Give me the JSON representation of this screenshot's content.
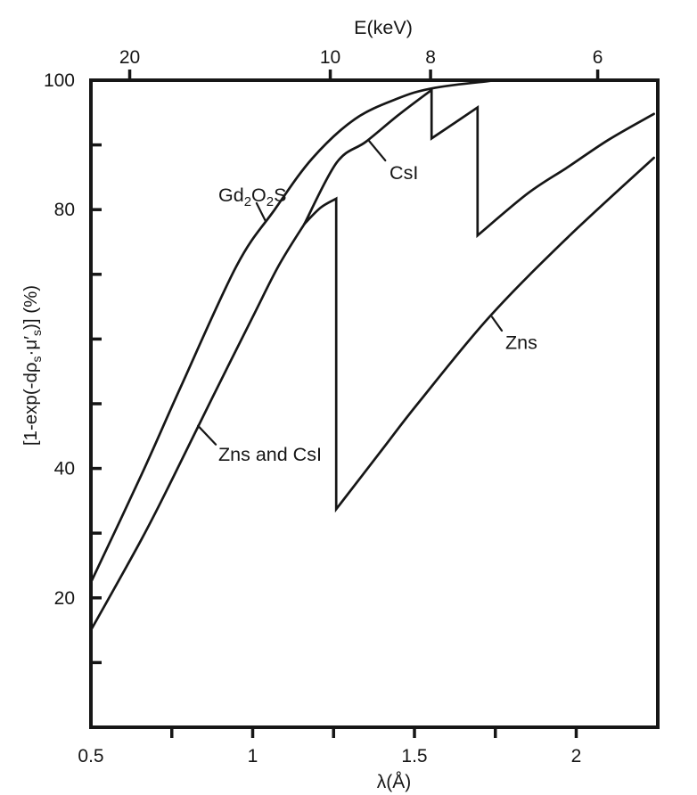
{
  "figure": {
    "background": "#ffffff",
    "ink": "#161616",
    "description": "X-ray absorption efficiency of phosphor screens versus wavelength"
  },
  "chart_data": {
    "type": "line",
    "grid": false,
    "legend": "inline-labels-with-leader-lines",
    "xlim": [
      0.5,
      2.24
    ],
    "ylim": [
      0,
      100
    ],
    "top_axis": {
      "label": "E(keV)",
      "ticks": [
        20,
        10,
        8,
        6
      ],
      "relation_to_x": "E[keV] = 12.398 / lambda[Angstrom]"
    },
    "x_axis": {
      "label": "λ(Å)",
      "min": 0.5,
      "max": 2.24,
      "tick_marks": [
        0.75,
        1.0,
        1.25,
        1.5,
        1.75,
        2.0
      ],
      "tick_labels": [
        {
          "value": 0.5,
          "text": "0.5"
        },
        {
          "value": 1.0,
          "text": "1"
        },
        {
          "value": 1.5,
          "text": "1.5"
        },
        {
          "value": 2.0,
          "text": "2"
        }
      ]
    },
    "y_axis": {
      "label_plain": "[1-exp(-dρs·μ′s)] (%)",
      "label_parts": [
        {
          "t": "[1-exp(-dρ"
        },
        {
          "t": "s",
          "sub": true
        },
        {
          "t": "·μ′"
        },
        {
          "t": "s",
          "sub": true
        },
        {
          "t": ")] (%)"
        }
      ],
      "min": 0,
      "max": 100,
      "tick_marks": [
        10,
        20,
        30,
        40,
        50,
        60,
        70,
        80,
        90
      ],
      "tick_labels": [
        {
          "value": 100,
          "text": "100"
        },
        {
          "value": 80,
          "text": "80"
        },
        {
          "value": 40,
          "text": "40"
        },
        {
          "value": 20,
          "text": "20"
        }
      ]
    },
    "series": [
      {
        "id": "gd2o2s",
        "name": "Gd2O2S",
        "points": [
          [
            0.5,
            22.4
          ],
          [
            0.657,
            39.1
          ],
          [
            0.775,
            52.3
          ],
          [
            0.95,
            71.3
          ],
          [
            1.068,
            80.0
          ],
          [
            1.184,
            87.9
          ],
          [
            1.316,
            94.0
          ],
          [
            1.45,
            97.2
          ],
          [
            1.55,
            98.7
          ],
          [
            1.7,
            99.7
          ],
          [
            1.81,
            100
          ],
          [
            2.24,
            100
          ]
        ]
      },
      {
        "id": "zns-csi-common",
        "name": "Zns and CsI (overlapping portion)",
        "points": [
          [
            0.5,
            15.0
          ],
          [
            0.657,
            29.1
          ],
          [
            0.753,
            38.5
          ],
          [
            0.876,
            51.0
          ],
          [
            1.0,
            63.4
          ],
          [
            1.08,
            71.3
          ],
          [
            1.16,
            77.8
          ]
        ]
      },
      {
        "id": "csi",
        "name": "CsI",
        "points": [
          [
            1.16,
            77.8
          ],
          [
            1.26,
            87.3
          ],
          [
            1.35,
            90.5
          ],
          [
            1.45,
            94.6
          ],
          [
            1.553,
            98.5
          ],
          [
            1.553,
            91.0
          ],
          [
            1.63,
            93.6
          ],
          [
            1.695,
            95.8
          ],
          [
            1.695,
            76.0
          ],
          [
            1.85,
            82.5
          ],
          [
            1.975,
            86.6
          ],
          [
            2.1,
            90.8
          ],
          [
            2.24,
            94.8
          ]
        ]
      },
      {
        "id": "zns",
        "name": "Zns",
        "points": [
          [
            1.16,
            77.8
          ],
          [
            1.21,
            80.3
          ],
          [
            1.258,
            81.7
          ],
          [
            1.258,
            33.7
          ],
          [
            1.4,
            42.9
          ],
          [
            1.51,
            50.0
          ],
          [
            1.733,
            63.5
          ],
          [
            1.98,
            76.0
          ],
          [
            2.24,
            88.0
          ]
        ]
      }
    ],
    "annotations": [
      {
        "id": "gd2o2s",
        "text": "Gd2O2S",
        "parts": [
          {
            "t": "Gd"
          },
          {
            "t": "2",
            "sub": true
          },
          {
            "t": "O"
          },
          {
            "t": "2",
            "sub": true
          },
          {
            "t": "S"
          }
        ],
        "x": 0.894,
        "y": 81.3,
        "leader": [
          [
            1.04,
            78.2
          ],
          [
            1.012,
            81.0
          ]
        ]
      },
      {
        "id": "csi",
        "text": "CsI",
        "x": 1.423,
        "y": 84.7,
        "leader": [
          [
            1.36,
            90.6
          ],
          [
            1.41,
            87.6
          ]
        ]
      },
      {
        "id": "zns-and-csi",
        "text": "Zns and CsI",
        "x": 0.894,
        "y": 41.2,
        "leader": [
          [
            0.831,
            46.6
          ],
          [
            0.886,
            43.7
          ]
        ]
      },
      {
        "id": "zns",
        "text": "Zns",
        "x": 1.781,
        "y": 58.5,
        "leader": [
          [
            1.74,
            63.4
          ],
          [
            1.77,
            61.3
          ]
        ]
      }
    ]
  }
}
